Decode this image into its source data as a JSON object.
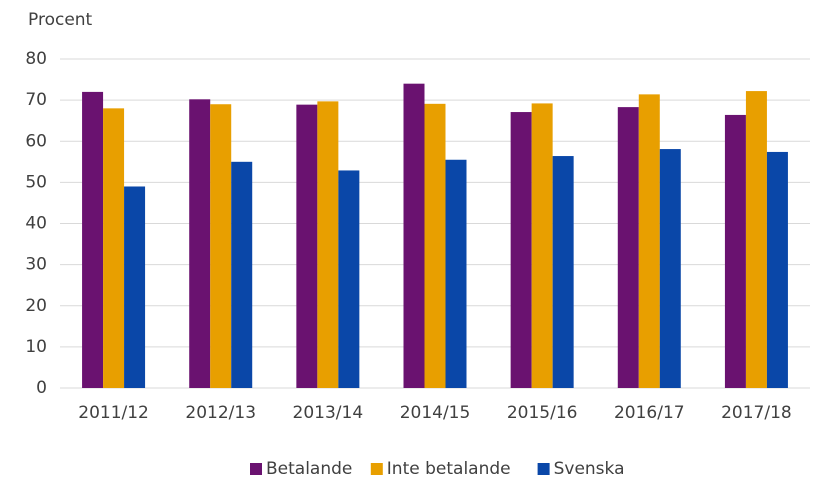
{
  "chart_data": {
    "type": "bar",
    "y_label": "Procent",
    "categories": [
      "2011/12",
      "2012/13",
      "2013/14",
      "2014/15",
      "2015/16",
      "2016/17",
      "2017/18"
    ],
    "series": [
      {
        "name": "Betalande",
        "color": "#6a1270",
        "values": [
          72,
          70.2,
          68.9,
          74,
          67.1,
          68.3,
          66.4
        ]
      },
      {
        "name": "Inte betalande",
        "color": "#e89f00",
        "values": [
          68,
          69,
          69.7,
          69.1,
          69.2,
          71.4,
          72.2
        ]
      },
      {
        "name": "Svenska",
        "color": "#0a47a8",
        "values": [
          49,
          55,
          52.9,
          55.5,
          56.4,
          58.1,
          57.4
        ]
      }
    ],
    "ylim": [
      0,
      80
    ],
    "yticks": [
      0,
      10,
      20,
      30,
      40,
      50,
      60,
      70,
      80
    ],
    "grid": true,
    "legend": "bottom"
  }
}
